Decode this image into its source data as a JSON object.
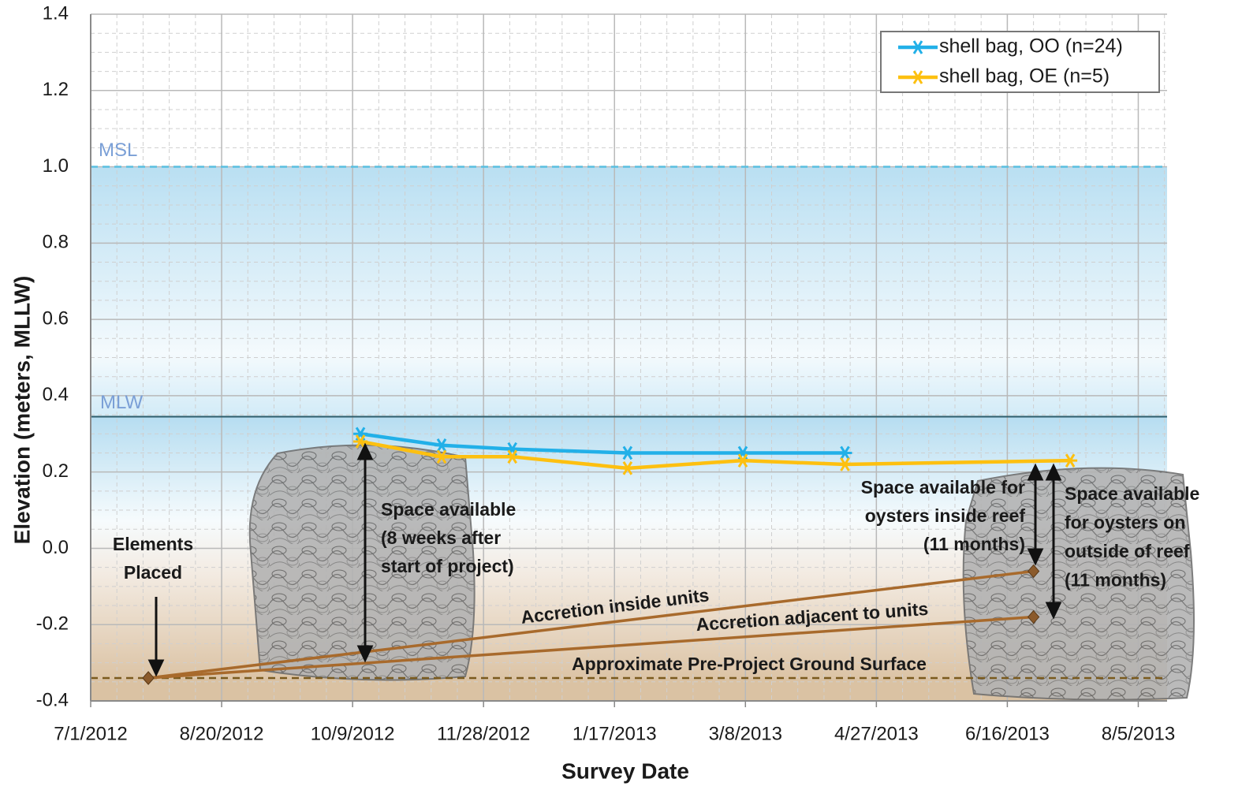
{
  "chart_data": {
    "type": "line",
    "x_label": "Survey Date",
    "y_label": "Elevation (meters, MLLW)",
    "x": [
      "10/12/2012",
      "11/12/2012",
      "12/9/2012",
      "1/22/2013",
      "3/7/2013",
      "4/15/2013",
      "7/10/2013"
    ],
    "series": [
      {
        "name": "shell bag, OO (n=24)",
        "color": "#22b0e8",
        "values": [
          0.3,
          0.27,
          0.26,
          0.25,
          0.25,
          0.25,
          null
        ]
      },
      {
        "name": "shell bag, OE (n=5)",
        "color": "#fdc010",
        "values": [
          0.28,
          0.24,
          0.24,
          0.21,
          0.23,
          0.22,
          0.23
        ]
      }
    ],
    "xlim": [
      "7/1/2012",
      "8/16/2013"
    ],
    "xticks": [
      "7/1/2012",
      "8/20/2012",
      "10/9/2012",
      "11/28/2012",
      "1/17/2013",
      "3/8/2013",
      "4/27/2013",
      "6/16/2013",
      "8/5/2013"
    ],
    "ylim": [
      -0.4,
      1.4
    ],
    "yticks": [
      1.4,
      1.2,
      {
        "value": 1,
        "label": "1.0"
      },
      0.8,
      0.6,
      0.4,
      0.2,
      {
        "value": 0,
        "label": "0.0"
      },
      -0.2,
      -0.4
    ],
    "grid": true,
    "minor_grid": true,
    "legend": "upper right",
    "reference_lines": [
      {
        "name": "MSL",
        "value": 1,
        "color": "#5bbfe0",
        "style": "dashed"
      },
      {
        "name": "MLW",
        "value": 0.345,
        "color": "#2e5d6b",
        "style": "solid"
      },
      {
        "name": "Approximate Pre-Project Ground Surface",
        "value": -0.34,
        "color": "#7a5a1e",
        "style": "dashed"
      }
    ],
    "trend_lines": [
      {
        "name": "Accretion inside units",
        "color": "#a86a2c",
        "x": [
          "7/23/2012",
          "6/26/2013"
        ],
        "values": [
          -0.34,
          -0.06
        ]
      },
      {
        "name": "Accretion adjacent to units",
        "color": "#a86a2c",
        "x": [
          "7/23/2012",
          "6/26/2013"
        ],
        "values": [
          -0.34,
          -0.18
        ]
      }
    ],
    "annotations": [
      {
        "lines": [
          "Elements",
          "Placed"
        ]
      },
      {
        "lines": [
          "Space available",
          "(8 weeks after",
          "start of project)"
        ]
      },
      {
        "lines": [
          "Space available for",
          "oysters inside reef",
          "(11 months)"
        ]
      },
      {
        "lines": [
          "Space available",
          "for oysters on",
          "outside of reef",
          "(11 months)"
        ]
      }
    ]
  }
}
